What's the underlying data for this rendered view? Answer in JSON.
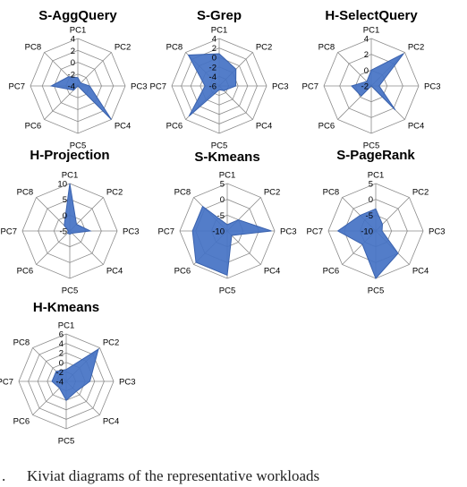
{
  "caption_prefix": ".",
  "caption": "Kiviat diagrams of the representative workloads",
  "colors": {
    "fill": "#4472C4",
    "stroke": "#3A62AE",
    "grid": "#8a8a8a",
    "text": "#000000"
  },
  "chart_data": [
    {
      "type": "radar",
      "title": "S-AggQuery",
      "axes": [
        "PC1",
        "PC2",
        "PC3",
        "PC4",
        "PC5",
        "PC6",
        "PC7",
        "PC8"
      ],
      "ticks": [
        4,
        2,
        0,
        -2,
        -4
      ],
      "tick_labels": [
        "4",
        "2",
        "0",
        "-2",
        "-4"
      ],
      "range": [
        -4,
        4
      ],
      "values": [
        -2.6,
        -3.3,
        -2.0,
        4.0,
        -4.0,
        -3.0,
        0.5,
        -1.8
      ]
    },
    {
      "type": "radar",
      "title": "S-Grep",
      "axes": [
        "PC1",
        "PC2",
        "PC3",
        "PC4",
        "PC5",
        "PC6",
        "PC7",
        "PC8"
      ],
      "ticks": [
        4,
        2,
        0,
        -2,
        -4,
        -6
      ],
      "tick_labels": [
        "4",
        "2",
        "0",
        "-2",
        "-4",
        "-6"
      ],
      "range": [
        -6,
        4
      ],
      "values": [
        0.8,
        -1.0,
        -2.5,
        -4.6,
        -5.2,
        3.0,
        -3.0,
        3.2
      ]
    },
    {
      "type": "radar",
      "title": "H-SelectQuery",
      "axes": [
        "PC1",
        "PC2",
        "PC3",
        "PC4",
        "PC5",
        "PC6",
        "PC7",
        "PC8"
      ],
      "ticks": [
        4,
        2,
        0,
        -2
      ],
      "tick_labels": [
        "4",
        "2",
        "0",
        "-2"
      ],
      "range": [
        -2,
        4
      ],
      "values": [
        0.0,
        3.8,
        -1.0,
        2.3,
        -2.0,
        -0.2,
        0.5,
        -1.2
      ]
    },
    {
      "type": "radar",
      "title": "H-Projection",
      "axes": [
        "PC1",
        "PC2",
        "PC3",
        "PC4",
        "PC5",
        "PC6",
        "PC7",
        "PC8"
      ],
      "ticks": [
        10,
        5,
        0,
        -5
      ],
      "tick_labels": [
        "10",
        "5",
        "0",
        "-5"
      ],
      "range": [
        -5,
        10
      ],
      "values": [
        10.0,
        -2.0,
        1.5,
        -4.0,
        -4.0,
        -4.0,
        -4.5,
        -2.5
      ]
    },
    {
      "type": "radar",
      "title": "S-Kmeans",
      "axes": [
        "PC1",
        "PC2",
        "PC3",
        "PC4",
        "PC5",
        "PC6",
        "PC7",
        "PC8"
      ],
      "ticks": [
        5,
        0,
        -5,
        -10
      ],
      "tick_labels": [
        "5",
        "0",
        "-5",
        "-10"
      ],
      "range": [
        -10,
        5
      ],
      "values": [
        -8.0,
        -5.0,
        4.0,
        -8.0,
        4.0,
        4.0,
        1.0,
        1.0
      ]
    },
    {
      "type": "radar",
      "title": "S-PageRank",
      "axes": [
        "PC1",
        "PC2",
        "PC3",
        "PC4",
        "PC5",
        "PC6",
        "PC7",
        "PC8"
      ],
      "ticks": [
        5,
        0,
        -5,
        -10
      ],
      "tick_labels": [
        "5",
        "0",
        "-5",
        "-10"
      ],
      "range": [
        -10,
        5
      ],
      "values": [
        -3.0,
        -7.0,
        -8.0,
        0.0,
        5.0,
        -4.0,
        2.0,
        -3.0
      ]
    },
    {
      "type": "radar",
      "title": "H-Kmeans",
      "axes": [
        "PC1",
        "PC2",
        "PC3",
        "PC4",
        "PC5",
        "PC6",
        "PC7",
        "PC8"
      ],
      "ticks": [
        6,
        4,
        2,
        0,
        -2,
        -4
      ],
      "tick_labels": [
        "6",
        "4",
        "2",
        "0",
        "-2",
        "-4"
      ],
      "range": [
        -4,
        6
      ],
      "values": [
        -1.5,
        5.6,
        1.0,
        -1.0,
        0.0,
        -2.0,
        -1.0,
        -1.0
      ]
    }
  ]
}
